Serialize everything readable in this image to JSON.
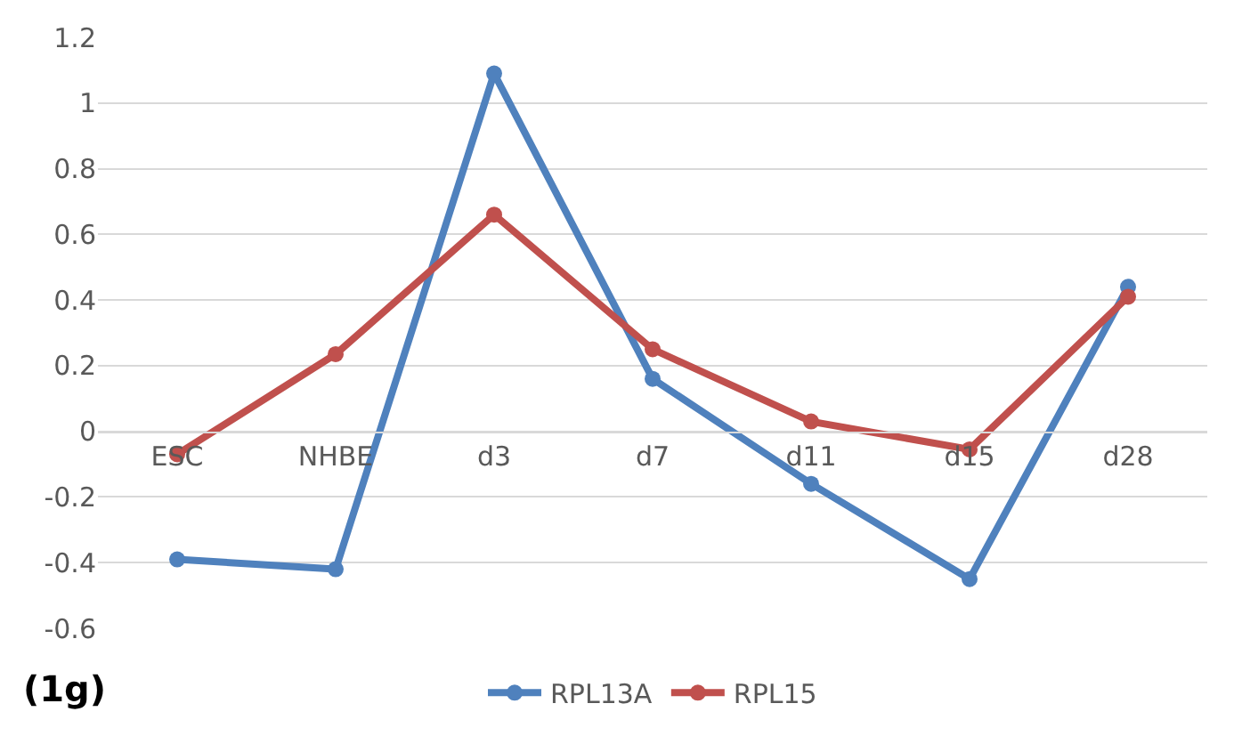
{
  "chart_data": {
    "type": "line",
    "categories": [
      "ESC",
      "NHBE",
      "d3",
      "d7",
      "d11",
      "d15",
      "d28"
    ],
    "series": [
      {
        "name": "RPL13A",
        "color": "#4f81bd",
        "values": [
          -0.39,
          -0.42,
          1.09,
          0.16,
          -0.16,
          -0.45,
          0.44
        ]
      },
      {
        "name": "RPL15",
        "color": "#c0504d",
        "values": [
          -0.07,
          0.235,
          0.66,
          0.25,
          0.03,
          -0.055,
          0.41
        ]
      }
    ],
    "ylim": [
      -0.6,
      1.2
    ],
    "yticks": [
      -0.6,
      -0.4,
      -0.2,
      0,
      0.2,
      0.4,
      0.6,
      0.8,
      1,
      1.2
    ],
    "grid": "y",
    "legend": "bottom",
    "marker": "circle",
    "line_style": "solid",
    "annotations": [
      "(1g)"
    ]
  }
}
